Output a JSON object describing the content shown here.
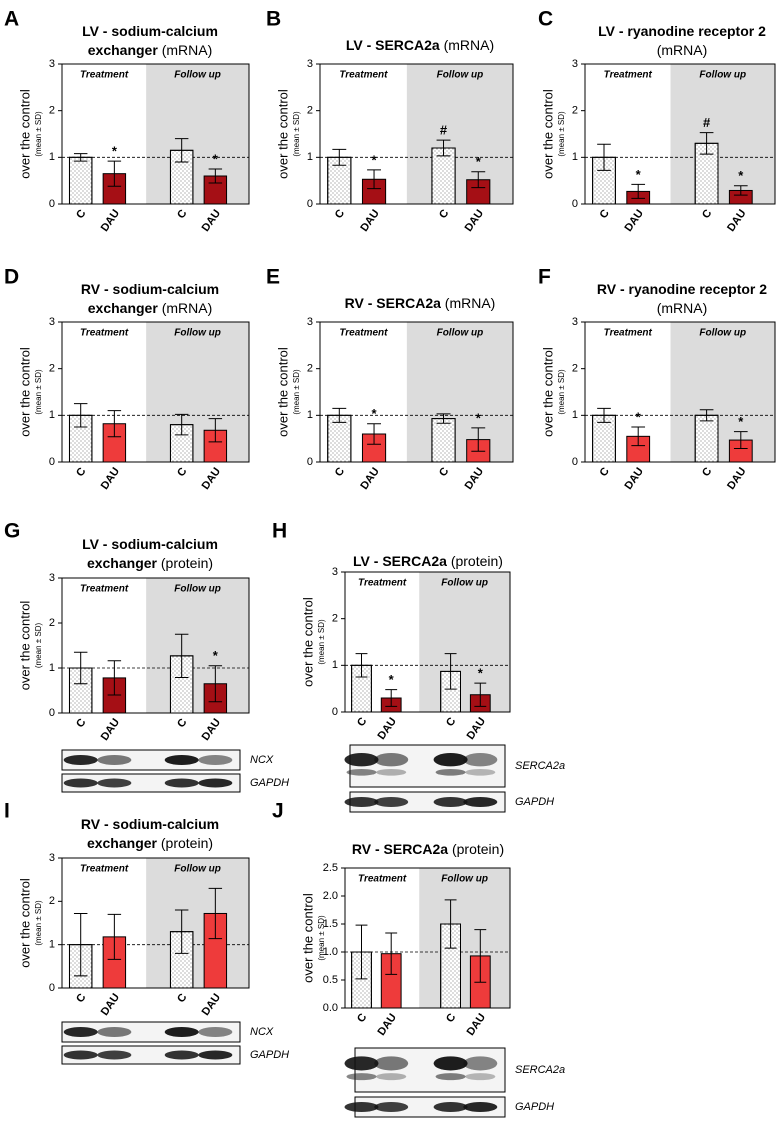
{
  "chart_data": [
    {
      "type": "bar",
      "panel": "A",
      "title": "LV - sodium-calcium exchanger",
      "title_note": "(mRNA)",
      "ylabel": "over the control",
      "ylabel_note": "(mean ± SD)",
      "groups": [
        "Treatment",
        "Follow up"
      ],
      "categories": [
        "C",
        "DAU",
        "C",
        "DAU"
      ],
      "values": [
        1.0,
        0.65,
        1.15,
        0.6
      ],
      "errors": [
        0.08,
        0.27,
        0.25,
        0.15
      ],
      "annotations": [
        null,
        "*",
        null,
        "*"
      ],
      "colors": [
        "#ffffff",
        "#a50f15",
        "#ffffff",
        "#a50f15"
      ],
      "reference_line": 1,
      "ylim": [
        0,
        3
      ],
      "yticks": [
        0,
        1,
        2,
        3
      ]
    },
    {
      "type": "bar",
      "panel": "B",
      "title": "LV - SERCA2a",
      "title_note": "(mRNA)",
      "ylabel": "over the control",
      "ylabel_note": "(mean ± SD)",
      "groups": [
        "Treatment",
        "Follow up"
      ],
      "categories": [
        "C",
        "DAU",
        "C",
        "DAU"
      ],
      "values": [
        1.0,
        0.53,
        1.2,
        0.52
      ],
      "errors": [
        0.17,
        0.2,
        0.17,
        0.17
      ],
      "annotations": [
        null,
        "*",
        "#",
        "*"
      ],
      "colors": [
        "#ffffff",
        "#a50f15",
        "#ffffff",
        "#a50f15"
      ],
      "reference_line": 1,
      "ylim": [
        0,
        3
      ],
      "yticks": [
        0,
        1,
        2,
        3
      ]
    },
    {
      "type": "bar",
      "panel": "C",
      "title": "LV - ryanodine receptor 2",
      "title_note": "(mRNA)",
      "ylabel": "over the control",
      "ylabel_note": "(mean ± SD)",
      "groups": [
        "Treatment",
        "Follow up"
      ],
      "categories": [
        "C",
        "DAU",
        "C",
        "DAU"
      ],
      "values": [
        1.0,
        0.27,
        1.3,
        0.29
      ],
      "errors": [
        0.28,
        0.15,
        0.23,
        0.1
      ],
      "annotations": [
        null,
        "*",
        "#",
        "*"
      ],
      "colors": [
        "#ffffff",
        "#a50f15",
        "#ffffff",
        "#a50f15"
      ],
      "reference_line": 1,
      "ylim": [
        0,
        3
      ],
      "yticks": [
        0,
        1,
        2,
        3
      ]
    },
    {
      "type": "bar",
      "panel": "D",
      "title": "RV - sodium-calcium exchanger",
      "title_note": "(mRNA)",
      "ylabel": "over the control",
      "ylabel_note": "(mean ± SD)",
      "groups": [
        "Treatment",
        "Follow up"
      ],
      "categories": [
        "C",
        "DAU",
        "C",
        "DAU"
      ],
      "values": [
        1.0,
        0.82,
        0.8,
        0.68
      ],
      "errors": [
        0.25,
        0.28,
        0.22,
        0.25
      ],
      "colors": [
        "#ffffff",
        "#ee3b3b",
        "#ffffff",
        "#ee3b3b"
      ],
      "reference_line": 1,
      "ylim": [
        0,
        3
      ],
      "yticks": [
        0,
        1,
        2,
        3
      ]
    },
    {
      "type": "bar",
      "panel": "E",
      "title": "RV - SERCA2a",
      "title_note": "(mRNA)",
      "ylabel": "over the control",
      "ylabel_note": "(mean ± SD)",
      "groups": [
        "Treatment",
        "Follow up"
      ],
      "categories": [
        "C",
        "DAU",
        "C",
        "DAU"
      ],
      "values": [
        1.0,
        0.6,
        0.93,
        0.48
      ],
      "errors": [
        0.15,
        0.22,
        0.1,
        0.25
      ],
      "annotations": [
        null,
        "*",
        null,
        "*"
      ],
      "colors": [
        "#ffffff",
        "#ee3b3b",
        "#ffffff",
        "#ee3b3b"
      ],
      "reference_line": 1,
      "ylim": [
        0,
        3
      ],
      "yticks": [
        0,
        1,
        2,
        3
      ]
    },
    {
      "type": "bar",
      "panel": "F",
      "title": "RV - ryanodine receptor 2",
      "title_note": "(mRNA)",
      "ylabel": "over the control",
      "ylabel_note": "(mean ± SD)",
      "groups": [
        "Treatment",
        "Follow up"
      ],
      "categories": [
        "C",
        "DAU",
        "C",
        "DAU"
      ],
      "values": [
        1.0,
        0.55,
        1.0,
        0.47
      ],
      "errors": [
        0.15,
        0.2,
        0.12,
        0.18
      ],
      "annotations": [
        null,
        "*",
        null,
        "*"
      ],
      "colors": [
        "#ffffff",
        "#ee3b3b",
        "#ffffff",
        "#ee3b3b"
      ],
      "reference_line": 1,
      "ylim": [
        0,
        3
      ],
      "yticks": [
        0,
        1,
        2,
        3
      ]
    },
    {
      "type": "bar",
      "panel": "G",
      "title": "LV - sodium-calcium exchanger",
      "title_note": "(protein)",
      "ylabel": "over the control",
      "ylabel_note": "(mean ± SD)",
      "groups": [
        "Treatment",
        "Follow up"
      ],
      "categories": [
        "C",
        "DAU",
        "C",
        "DAU"
      ],
      "values": [
        1.0,
        0.78,
        1.27,
        0.65
      ],
      "errors": [
        0.35,
        0.38,
        0.48,
        0.4
      ],
      "annotations": [
        null,
        null,
        null,
        "*"
      ],
      "colors": [
        "#ffffff",
        "#a50f15",
        "#ffffff",
        "#a50f15"
      ],
      "reference_line": 1,
      "ylim": [
        0,
        3
      ],
      "yticks": [
        0,
        1,
        2,
        3
      ],
      "blot_labels": [
        "NCX",
        "GAPDH"
      ]
    },
    {
      "type": "bar",
      "panel": "H",
      "title": "LV - SERCA2a",
      "title_note": "(protein)",
      "ylabel": "over the control",
      "ylabel_note": "(mean ± SD)",
      "groups": [
        "Treatment",
        "Follow up"
      ],
      "categories": [
        "C",
        "DAU",
        "C",
        "DAU"
      ],
      "values": [
        1.0,
        0.3,
        0.87,
        0.37
      ],
      "errors": [
        0.25,
        0.18,
        0.38,
        0.25
      ],
      "annotations": [
        null,
        "*",
        null,
        "*"
      ],
      "colors": [
        "#ffffff",
        "#a50f15",
        "#ffffff",
        "#a50f15"
      ],
      "reference_line": 1,
      "ylim": [
        0,
        3
      ],
      "yticks": [
        0,
        1,
        2,
        3
      ],
      "blot_labels": [
        "SERCA2a",
        "GAPDH"
      ]
    },
    {
      "type": "bar",
      "panel": "I",
      "title": "RV - sodium-calcium exchanger",
      "title_note": "(protein)",
      "ylabel": "over the control",
      "ylabel_note": "(mean ± SD)",
      "groups": [
        "Treatment",
        "Follow up"
      ],
      "categories": [
        "C",
        "DAU",
        "C",
        "DAU"
      ],
      "values": [
        1.0,
        1.18,
        1.3,
        1.72
      ],
      "errors": [
        0.72,
        0.52,
        0.5,
        0.58
      ],
      "colors": [
        "#ffffff",
        "#ee3b3b",
        "#ffffff",
        "#ee3b3b"
      ],
      "reference_line": 1,
      "ylim": [
        0,
        3
      ],
      "yticks": [
        0,
        1,
        2,
        3
      ],
      "blot_labels": [
        "NCX",
        "GAPDH"
      ]
    },
    {
      "type": "bar",
      "panel": "J",
      "title": "RV - SERCA2a",
      "title_note": "(protein)",
      "ylabel": "over the control",
      "ylabel_note": "(mean ± SD)",
      "groups": [
        "Treatment",
        "Follow up"
      ],
      "categories": [
        "C",
        "DAU",
        "C",
        "DAU"
      ],
      "values": [
        1.0,
        0.97,
        1.5,
        0.93
      ],
      "errors": [
        0.48,
        0.37,
        0.43,
        0.47
      ],
      "colors": [
        "#ffffff",
        "#ee3b3b",
        "#ffffff",
        "#ee3b3b"
      ],
      "reference_line": 1,
      "ylim": [
        0,
        2.5
      ],
      "yticks": [
        {
          "value": 0,
          "label": "0.0"
        },
        0.5,
        {
          "value": 1,
          "label": "1.0"
        },
        1.5,
        {
          "value": 2,
          "label": "2.0"
        },
        2.5
      ],
      "blot_labels": [
        "SERCA2a",
        "GAPDH"
      ]
    }
  ]
}
